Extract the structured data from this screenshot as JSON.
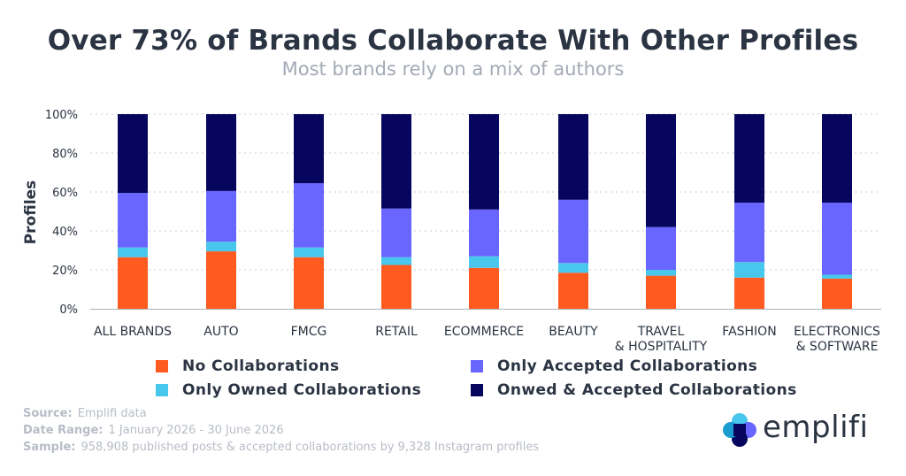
{
  "header": {
    "title": "Over 73% of Brands Collaborate With Other Profiles",
    "subtitle": "Most brands rely on a mix of authors"
  },
  "chart_data": {
    "type": "bar",
    "stacked": true,
    "ylabel": "Profiles",
    "ylim": [
      0,
      100
    ],
    "yticks": [
      "0%",
      "20%",
      "40%",
      "60%",
      "80%",
      "100%"
    ],
    "grid": "horizontal-dotted",
    "categories": [
      [
        "ALL BRANDS"
      ],
      [
        "AUTO"
      ],
      [
        "FMCG"
      ],
      [
        "RETAIL"
      ],
      [
        "ECOMMERCE"
      ],
      [
        "BEAUTY"
      ],
      [
        "TRAVEL",
        "& HOSPITALITY"
      ],
      [
        "FASHION"
      ],
      [
        "ELECTRONICS",
        "& SOFTWARE"
      ]
    ],
    "series": [
      {
        "name": "No Collaborations",
        "color": "#ff5a1f",
        "values": [
          26.5,
          29.5,
          26.5,
          22.5,
          21,
          18.5,
          17,
          16,
          15.5
        ]
      },
      {
        "name": "Only Owned Collaborations",
        "color": "#48c6ec",
        "values": [
          5,
          5,
          5,
          4,
          6,
          5,
          3,
          8,
          2
        ]
      },
      {
        "name": "Only Accepted Collaborations",
        "color": "#6966ff",
        "values": [
          28,
          26,
          33,
          25,
          24,
          32.5,
          22,
          30.5,
          37
        ]
      },
      {
        "name": "Onwed & Accepted Collaborations",
        "color": "#07065e",
        "values": [
          40.5,
          39.5,
          35.5,
          48.5,
          49,
          44,
          58,
          45.5,
          45.5
        ]
      }
    ]
  },
  "footer": {
    "source_key": "Source:",
    "source_value": "Emplifi data",
    "date_key": "Date Range:",
    "date_value": "1 January 2026 - 30 June 2026",
    "sample_key": "Sample:",
    "sample_value": "958,908 published posts & accepted collaborations by 9,328 Instagram profiles"
  },
  "logo": {
    "name": "emplifi",
    "icon": "emplifi-clover-icon",
    "colors": [
      "#48c6ec",
      "#6966ff",
      "#07065e",
      "#1a9cd0"
    ]
  }
}
